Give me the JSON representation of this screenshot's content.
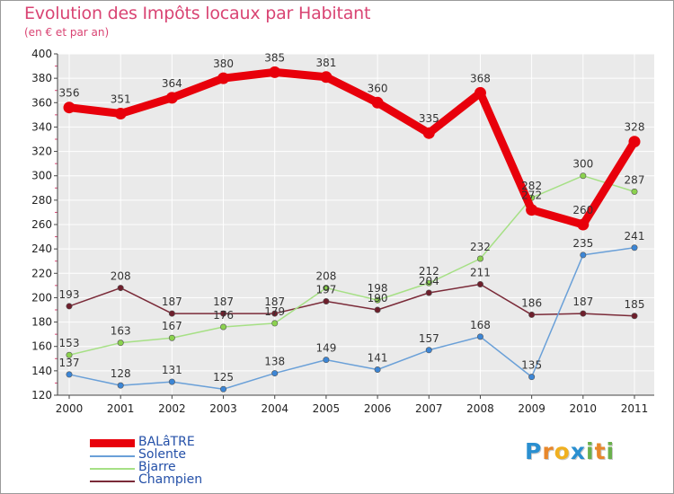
{
  "chart_data": {
    "type": "line",
    "title": "Evolution des Impôts locaux par Habitant",
    "subtitle": "(en € et par an)",
    "xlabel": "",
    "ylabel": "",
    "ylim": [
      120,
      400
    ],
    "yticks": [
      120,
      140,
      160,
      180,
      200,
      220,
      240,
      260,
      280,
      300,
      320,
      340,
      360,
      380,
      400
    ],
    "categories": [
      "2000",
      "2001",
      "2002",
      "2003",
      "2004",
      "2005",
      "2006",
      "2007",
      "2008",
      "2009",
      "2010",
      "2011"
    ],
    "grid": true,
    "legend_position": "bottom-left",
    "series": [
      {
        "name": "BALâTRE",
        "color": "#e8000b",
        "marker": "#e8000b",
        "values": [
          356,
          351,
          364,
          380,
          385,
          381,
          360,
          335,
          368,
          272,
          260,
          328
        ],
        "labels": [
          "356",
          "351",
          "364",
          "380",
          "385",
          "381",
          "360",
          "335",
          "368",
          "272",
          "260",
          "328"
        ]
      },
      {
        "name": "Solente",
        "color": "#6aa0d8",
        "marker": "#3c86d6",
        "values": [
          137,
          128,
          131,
          125,
          138,
          149,
          141,
          157,
          168,
          135,
          235,
          241
        ],
        "labels": [
          "137",
          "128",
          "131",
          "125",
          "138",
          "149",
          "141",
          "157",
          "168",
          "135",
          "235",
          "241"
        ]
      },
      {
        "name": "Bjarre",
        "color": "#a6e085",
        "marker": "#8bd24e",
        "values": [
          153,
          163,
          167,
          176,
          179,
          208,
          198,
          212,
          232,
          282,
          300,
          287
        ],
        "labels": [
          "153",
          "163",
          "167",
          "176",
          "179",
          "208",
          "198",
          "212",
          "232",
          "282",
          "300",
          "287"
        ]
      },
      {
        "name": "Champien",
        "color": "#7a2a38",
        "marker": "#6e1f2c",
        "values": [
          193,
          208,
          187,
          187,
          187,
          197,
          190,
          204,
          211,
          186,
          187,
          185
        ],
        "labels": [
          "193",
          "208",
          "187",
          "187",
          "187",
          "197",
          "190",
          "204",
          "211",
          "186",
          "187",
          "185"
        ]
      }
    ]
  },
  "branding": {
    "logo_letters": [
      "P",
      "r",
      "o",
      "x",
      "i",
      "t",
      "i"
    ],
    "logo_colors": [
      "#2a8fd0",
      "#e8872a",
      "#f0b020",
      "#2a8fd0",
      "#6ab04c",
      "#e8872a",
      "#6ab04c"
    ]
  }
}
